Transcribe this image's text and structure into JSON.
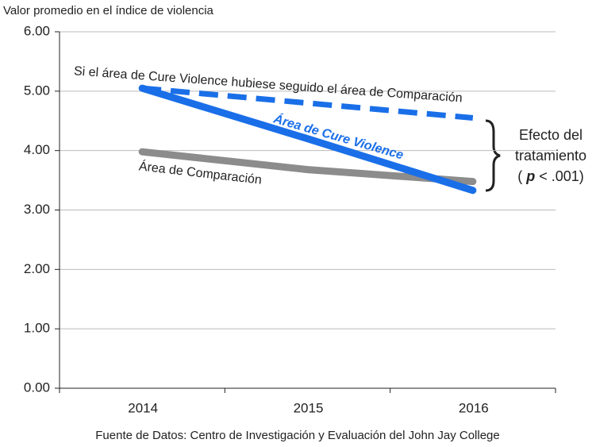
{
  "chart_data": {
    "type": "line",
    "title": "Valor promedio en el índice de violencia",
    "source": "Fuente de Datos: Centro de Investigación y Evaluación del John Jay College",
    "categories": [
      "2014",
      "2015",
      "2016"
    ],
    "series": [
      {
        "name": "Área de Comparación",
        "color": "#8c8c8c",
        "style": "solid",
        "values": [
          3.98,
          3.68,
          3.48
        ]
      },
      {
        "name": "Área de Cure Violence",
        "color": "#1a6fe8",
        "style": "solid",
        "values": [
          5.05,
          4.2,
          3.33
        ]
      },
      {
        "name": "Si el área de Cure Violence hubiese seguido el área de Comparación",
        "color": "#1a6fe8",
        "style": "dashed",
        "values": [
          5.05,
          4.8,
          4.55
        ]
      }
    ],
    "annotation": {
      "lines": [
        "Efecto del",
        "tratamiento"
      ],
      "open": "(",
      "p": "p",
      "rest": "< .001)"
    },
    "ylim": [
      0,
      6
    ],
    "yticks": [
      {
        "value": 0,
        "label": "0.00"
      },
      {
        "value": 1,
        "label": "1.00"
      },
      {
        "value": 2,
        "label": "2.00"
      },
      {
        "value": 3,
        "label": "3.00"
      },
      {
        "value": 4,
        "label": "4.00"
      },
      {
        "value": 5,
        "label": "5.00"
      },
      {
        "value": 6,
        "label": "6.00"
      }
    ],
    "grid": true
  }
}
